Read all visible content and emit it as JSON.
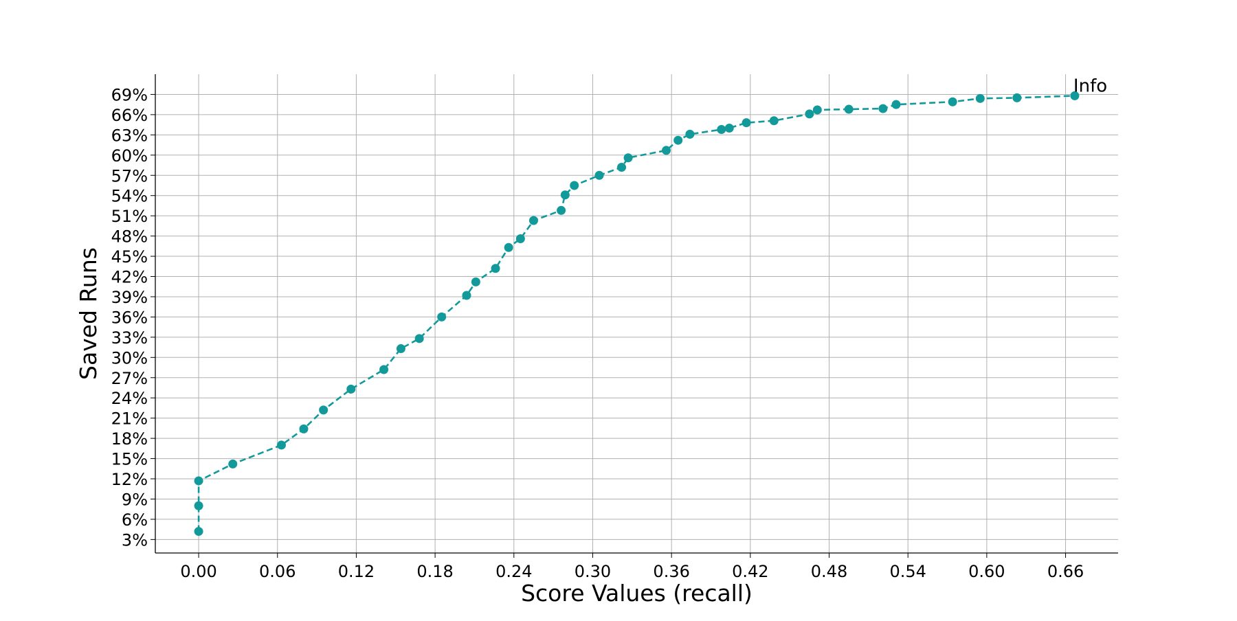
{
  "chart_data": {
    "type": "line",
    "title": "",
    "xlabel": "Score Values (recall)",
    "ylabel": "Saved Runs",
    "xlim": [
      -0.033,
      0.7
    ],
    "ylim": [
      1.0,
      72.0
    ],
    "x_ticks": [
      0.0,
      0.06,
      0.12,
      0.18,
      0.24,
      0.3,
      0.36,
      0.42,
      0.48,
      0.54,
      0.6,
      0.66
    ],
    "x_tick_labels": [
      "0.00",
      "0.06",
      "0.12",
      "0.18",
      "0.24",
      "0.30",
      "0.36",
      "0.42",
      "0.48",
      "0.54",
      "0.60",
      "0.66"
    ],
    "y_ticks": [
      3,
      6,
      9,
      12,
      15,
      18,
      21,
      24,
      27,
      30,
      33,
      36,
      39,
      42,
      45,
      48,
      51,
      54,
      57,
      60,
      63,
      66,
      69
    ],
    "y_tick_labels": [
      "3%",
      "6%",
      "9%",
      "12%",
      "15%",
      "18%",
      "21%",
      "24%",
      "27%",
      "30%",
      "33%",
      "36%",
      "39%",
      "42%",
      "45%",
      "48%",
      "51%",
      "54%",
      "57%",
      "60%",
      "63%",
      "66%",
      "69%"
    ],
    "grid": true,
    "color": "#12999a",
    "annotation": {
      "text": "Info",
      "x": 0.667,
      "y": 68.8
    },
    "series": [
      {
        "name": "Saved Runs",
        "x": [
          0.0,
          0.0,
          0.0,
          0.026,
          0.063,
          0.08,
          0.095,
          0.116,
          0.141,
          0.154,
          0.168,
          0.185,
          0.204,
          0.211,
          0.226,
          0.236,
          0.245,
          0.255,
          0.276,
          0.279,
          0.286,
          0.305,
          0.322,
          0.327,
          0.356,
          0.365,
          0.374,
          0.398,
          0.404,
          0.417,
          0.438,
          0.465,
          0.471,
          0.495,
          0.521,
          0.531,
          0.574,
          0.595,
          0.623,
          0.667
        ],
        "y": [
          4.2,
          8.0,
          11.7,
          14.2,
          17.0,
          19.4,
          22.2,
          25.3,
          28.2,
          31.3,
          32.8,
          36.0,
          39.2,
          41.2,
          43.2,
          46.3,
          47.6,
          50.3,
          51.8,
          54.1,
          55.5,
          57.0,
          58.2,
          59.6,
          60.7,
          62.2,
          63.1,
          63.8,
          64.0,
          64.8,
          65.1,
          66.1,
          66.7,
          66.8,
          66.9,
          67.5,
          67.9,
          68.4,
          68.5,
          68.8
        ]
      }
    ]
  }
}
